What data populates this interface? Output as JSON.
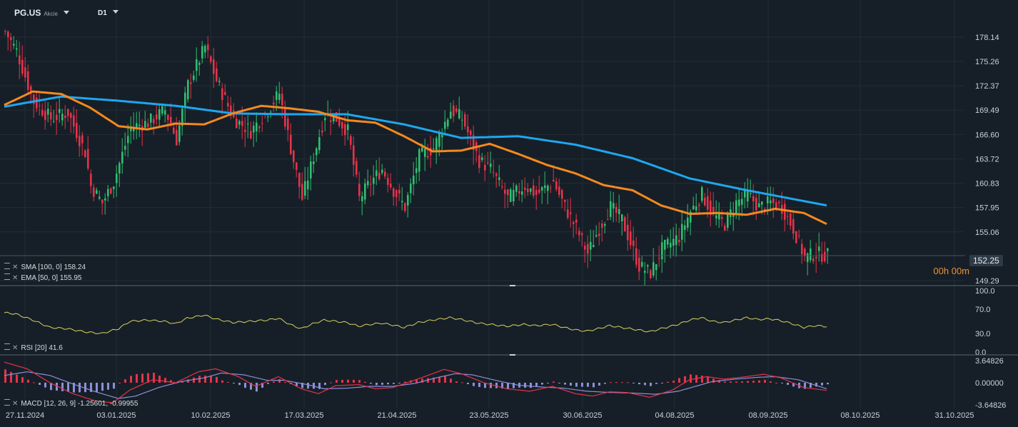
{
  "header": {
    "symbol": "PG.US",
    "symbol_sub": "Akcie",
    "timeframe": "D1"
  },
  "indicators": {
    "sma_label": "SMA [100, 0]",
    "sma_value": "158.24",
    "ema_label": "EMA [50, 0]",
    "ema_value": "155.95",
    "rsi_label": "RSI [20]",
    "rsi_value": "41.6",
    "macd_label": "MACD [12, 26, 9]",
    "macd_values": "-1.25601, -0.99955"
  },
  "countdown": "00h 00m",
  "current_price": "152.25",
  "colors": {
    "background": "#161f27",
    "up_candle": "#2fbf71",
    "down_candle": "#e5334a",
    "sma": "#1ea7f0",
    "ema": "#f5891f",
    "rsi": "#d8d060",
    "macd_line": "#e5334a",
    "signal_line": "#8b8fd9",
    "hist_pos": "#e5334a",
    "hist_neg": "#8b8fd9"
  },
  "chart_data": [
    {
      "type": "candlestick",
      "panel": "price",
      "y_ticks": [
        "178.14",
        "175.26",
        "172.37",
        "169.49",
        "166.60",
        "163.72",
        "160.83",
        "157.95",
        "155.06",
        "149.29"
      ],
      "ylim": [
        148.9,
        180.1
      ],
      "x_ticks": [
        "27.11.2024",
        "03.01.2025",
        "10.02.2025",
        "17.03.2025",
        "21.04.2025",
        "23.05.2025",
        "30.06.2025",
        "04.08.2025",
        "08.09.2025",
        "08.10.2025",
        "31.10.2025"
      ],
      "close_anchors": [
        [
          0,
          178.8
        ],
        [
          4,
          176.5
        ],
        [
          10,
          170.5
        ],
        [
          16,
          168.5
        ],
        [
          22,
          169.2
        ],
        [
          28,
          164.5
        ],
        [
          30,
          160.5
        ],
        [
          34,
          158.5
        ],
        [
          38,
          161.0
        ],
        [
          44,
          167.5
        ],
        [
          50,
          168.0
        ],
        [
          56,
          169.5
        ],
        [
          60,
          166.0
        ],
        [
          64,
          172.5
        ],
        [
          70,
          177.0
        ],
        [
          74,
          173.0
        ],
        [
          80,
          168.5
        ],
        [
          86,
          167.0
        ],
        [
          92,
          169.5
        ],
        [
          96,
          171.5
        ],
        [
          100,
          165.0
        ],
        [
          104,
          159.0
        ],
        [
          108,
          164.0
        ],
        [
          112,
          169.0
        ],
        [
          116,
          168.5
        ],
        [
          120,
          167.0
        ],
        [
          124,
          159.0
        ],
        [
          128,
          161.0
        ],
        [
          132,
          162.5
        ],
        [
          136,
          160.0
        ],
        [
          140,
          158.0
        ],
        [
          145,
          164.0
        ],
        [
          150,
          165.0
        ],
        [
          156,
          169.5
        ],
        [
          160,
          168.5
        ],
        [
          166,
          163.5
        ],
        [
          170,
          162.5
        ],
        [
          176,
          159.0
        ],
        [
          182,
          160.5
        ],
        [
          186,
          159.5
        ],
        [
          192,
          161.0
        ],
        [
          196,
          158.0
        ],
        [
          200,
          155.5
        ],
        [
          204,
          152.5
        ],
        [
          208,
          155.5
        ],
        [
          212,
          158.0
        ],
        [
          216,
          156.5
        ],
        [
          222,
          151.0
        ],
        [
          226,
          150.2
        ],
        [
          230,
          153.0
        ],
        [
          236,
          154.5
        ],
        [
          240,
          157.5
        ],
        [
          244,
          159.5
        ],
        [
          248,
          157.0
        ],
        [
          252,
          156.0
        ],
        [
          256,
          158.5
        ],
        [
          260,
          159.5
        ],
        [
          264,
          158.0
        ],
        [
          268,
          158.5
        ],
        [
          272,
          158.0
        ],
        [
          276,
          155.5
        ],
        [
          280,
          152.0
        ],
        [
          284,
          152.5
        ],
        [
          288,
          152.3
        ]
      ],
      "last_close": 152.25,
      "series": [
        {
          "name": "SMA [100, 0]",
          "last": 158.24,
          "anchors": [
            [
              0,
              169.9
            ],
            [
              20,
              171.1
            ],
            [
              40,
              170.6
            ],
            [
              60,
              170.0
            ],
            [
              80,
              169.1
            ],
            [
              100,
              169.0
            ],
            [
              120,
              169.0
            ],
            [
              140,
              167.8
            ],
            [
              160,
              166.2
            ],
            [
              180,
              166.4
            ],
            [
              200,
              165.4
            ],
            [
              220,
              163.8
            ],
            [
              240,
              161.4
            ],
            [
              260,
              160.0
            ],
            [
              288,
              158.2
            ]
          ]
        },
        {
          "name": "EMA [50, 0]",
          "last": 155.95,
          "anchors": [
            [
              0,
              170.1
            ],
            [
              10,
              171.7
            ],
            [
              20,
              171.4
            ],
            [
              30,
              169.8
            ],
            [
              40,
              167.6
            ],
            [
              50,
              167.2
            ],
            [
              60,
              167.9
            ],
            [
              70,
              167.8
            ],
            [
              80,
              169.1
            ],
            [
              90,
              170.0
            ],
            [
              100,
              169.7
            ],
            [
              110,
              169.3
            ],
            [
              120,
              168.3
            ],
            [
              130,
              168.0
            ],
            [
              140,
              166.4
            ],
            [
              150,
              164.6
            ],
            [
              160,
              164.7
            ],
            [
              170,
              165.5
            ],
            [
              180,
              164.3
            ],
            [
              190,
              163.0
            ],
            [
              200,
              162.0
            ],
            [
              210,
              160.6
            ],
            [
              220,
              160.0
            ],
            [
              230,
              158.2
            ],
            [
              240,
              157.2
            ],
            [
              250,
              157.3
            ],
            [
              260,
              157.1
            ],
            [
              270,
              157.8
            ],
            [
              280,
              157.3
            ],
            [
              288,
              156.0
            ]
          ]
        }
      ]
    },
    {
      "type": "line",
      "panel": "rsi",
      "name": "RSI [20]",
      "y_ticks": [
        "100.0",
        "70.0",
        "30.0",
        "0.0"
      ],
      "ylim": [
        0,
        100
      ],
      "last": 41.6,
      "anchors": [
        [
          0,
          64
        ],
        [
          4,
          62
        ],
        [
          10,
          52
        ],
        [
          16,
          40
        ],
        [
          22,
          38
        ],
        [
          28,
          33
        ],
        [
          34,
          30
        ],
        [
          40,
          38
        ],
        [
          44,
          50
        ],
        [
          50,
          52
        ],
        [
          56,
          50
        ],
        [
          60,
          46
        ],
        [
          64,
          55
        ],
        [
          70,
          60
        ],
        [
          74,
          54
        ],
        [
          80,
          48
        ],
        [
          86,
          50
        ],
        [
          92,
          52
        ],
        [
          96,
          55
        ],
        [
          100,
          45
        ],
        [
          104,
          38
        ],
        [
          108,
          46
        ],
        [
          112,
          52
        ],
        [
          116,
          50
        ],
        [
          120,
          48
        ],
        [
          124,
          42
        ],
        [
          128,
          45
        ],
        [
          132,
          47
        ],
        [
          136,
          44
        ],
        [
          140,
          40
        ],
        [
          145,
          48
        ],
        [
          150,
          52
        ],
        [
          156,
          56
        ],
        [
          160,
          53
        ],
        [
          166,
          47
        ],
        [
          170,
          45
        ],
        [
          176,
          42
        ],
        [
          182,
          45
        ],
        [
          186,
          43
        ],
        [
          192,
          45
        ],
        [
          196,
          40
        ],
        [
          200,
          36
        ],
        [
          204,
          34
        ],
        [
          208,
          38
        ],
        [
          212,
          43
        ],
        [
          216,
          40
        ],
        [
          222,
          36
        ],
        [
          226,
          33
        ],
        [
          230,
          38
        ],
        [
          236,
          45
        ],
        [
          240,
          52
        ],
        [
          244,
          56
        ],
        [
          248,
          50
        ],
        [
          252,
          48
        ],
        [
          256,
          52
        ],
        [
          260,
          56
        ],
        [
          264,
          53
        ],
        [
          268,
          54
        ],
        [
          272,
          51
        ],
        [
          276,
          46
        ],
        [
          280,
          40
        ],
        [
          284,
          43
        ],
        [
          288,
          41.6
        ]
      ]
    },
    {
      "type": "macd",
      "panel": "macd",
      "name": "MACD [12, 26, 9]",
      "y_ticks": [
        "3.64826",
        "0.00000",
        "-3.64826"
      ],
      "ylim": [
        -3.64826,
        3.64826
      ],
      "macd_last": -1.25601,
      "signal_last": -0.99955,
      "macd_anchors": [
        [
          0,
          3.4
        ],
        [
          8,
          2.3
        ],
        [
          16,
          0.0
        ],
        [
          24,
          -1.8
        ],
        [
          32,
          -3.0
        ],
        [
          38,
          -3.3
        ],
        [
          44,
          -1.2
        ],
        [
          52,
          0.5
        ],
        [
          60,
          0.0
        ],
        [
          68,
          1.8
        ],
        [
          74,
          2.3
        ],
        [
          82,
          1.0
        ],
        [
          88,
          -0.6
        ],
        [
          96,
          1.0
        ],
        [
          104,
          -1.0
        ],
        [
          110,
          -1.8
        ],
        [
          116,
          -0.5
        ],
        [
          124,
          -0.3
        ],
        [
          130,
          -1.0
        ],
        [
          136,
          -0.8
        ],
        [
          146,
          0.8
        ],
        [
          154,
          2.2
        ],
        [
          160,
          1.5
        ],
        [
          168,
          0.0
        ],
        [
          176,
          -1.0
        ],
        [
          184,
          -1.4
        ],
        [
          192,
          -0.6
        ],
        [
          200,
          -1.8
        ],
        [
          206,
          -2.2
        ],
        [
          212,
          -1.5
        ],
        [
          218,
          -1.6
        ],
        [
          226,
          -2.4
        ],
        [
          234,
          -1.2
        ],
        [
          240,
          0.5
        ],
        [
          246,
          1.0
        ],
        [
          252,
          0.6
        ],
        [
          258,
          0.9
        ],
        [
          266,
          1.4
        ],
        [
          272,
          0.8
        ],
        [
          280,
          -0.8
        ],
        [
          288,
          -1.26
        ]
      ],
      "signal_anchors": [
        [
          0,
          1.2
        ],
        [
          8,
          1.8
        ],
        [
          16,
          1.2
        ],
        [
          24,
          -0.2
        ],
        [
          32,
          -1.5
        ],
        [
          40,
          -2.6
        ],
        [
          46,
          -2.2
        ],
        [
          54,
          -0.8
        ],
        [
          62,
          0.2
        ],
        [
          70,
          0.8
        ],
        [
          76,
          1.6
        ],
        [
          84,
          1.3
        ],
        [
          92,
          0.4
        ],
        [
          98,
          0.4
        ],
        [
          106,
          -0.3
        ],
        [
          112,
          -1.0
        ],
        [
          120,
          -0.9
        ],
        [
          128,
          -0.6
        ],
        [
          136,
          -0.6
        ],
        [
          144,
          -0.1
        ],
        [
          152,
          0.9
        ],
        [
          158,
          1.5
        ],
        [
          164,
          1.3
        ],
        [
          172,
          0.4
        ],
        [
          180,
          -0.4
        ],
        [
          188,
          -0.7
        ],
        [
          196,
          -0.9
        ],
        [
          204,
          -1.4
        ],
        [
          212,
          -1.6
        ],
        [
          220,
          -1.7
        ],
        [
          228,
          -1.9
        ],
        [
          236,
          -1.4
        ],
        [
          242,
          -0.6
        ],
        [
          248,
          0.2
        ],
        [
          256,
          0.6
        ],
        [
          264,
          0.9
        ],
        [
          270,
          1.0
        ],
        [
          278,
          0.5
        ],
        [
          288,
          -1.0
        ]
      ]
    }
  ]
}
